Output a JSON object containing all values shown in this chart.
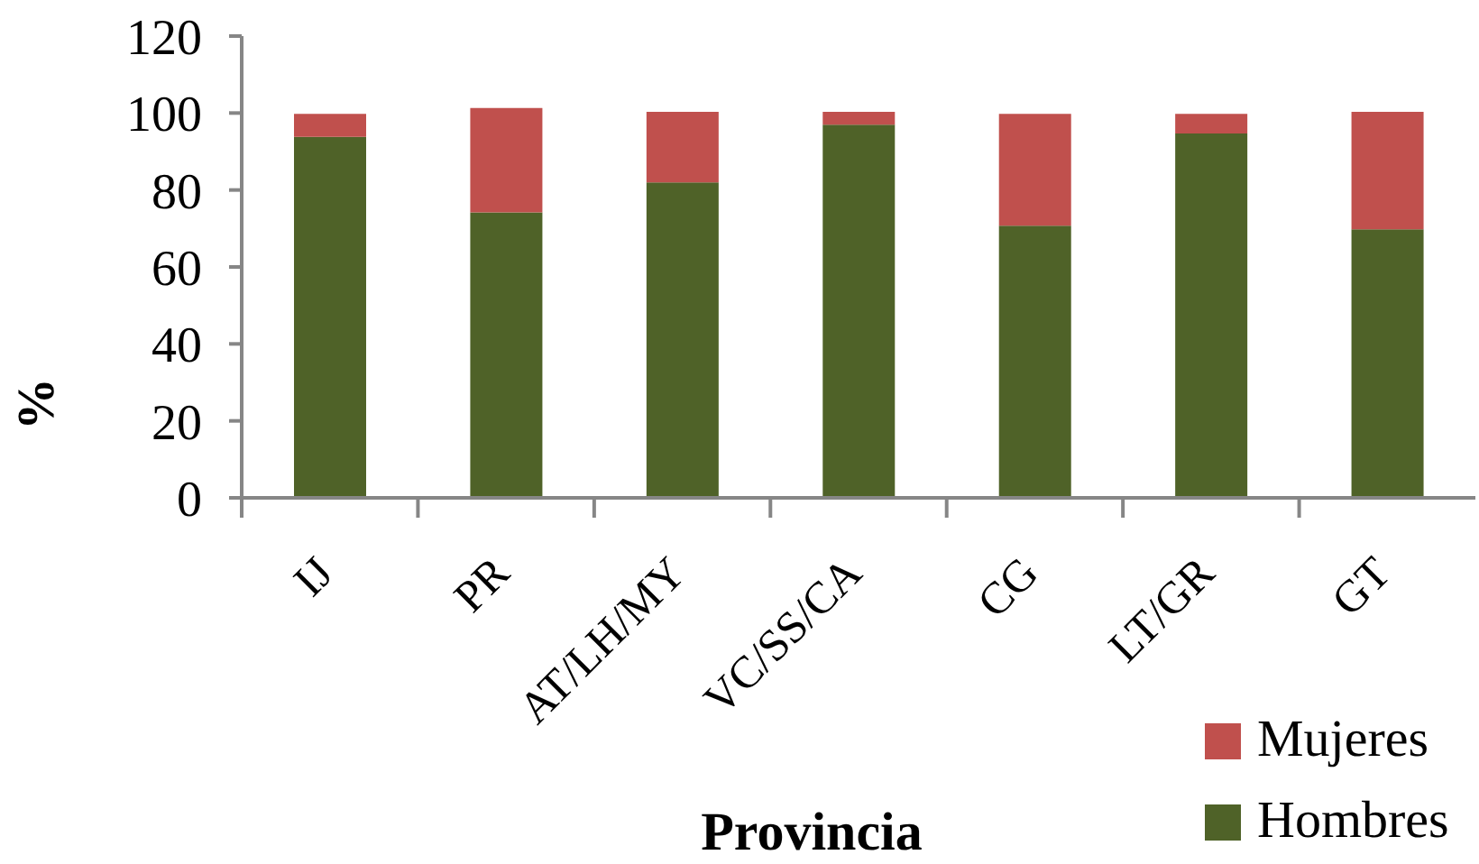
{
  "chart_data": {
    "type": "bar",
    "stacked": true,
    "xlabel": "Provincia",
    "ylabel": "%",
    "categories": [
      "IJ",
      "PR",
      "AT/LH/MY",
      "VC/SS/CA",
      "CG",
      "LT/GR",
      "GT"
    ],
    "series": [
      {
        "name": "Hombres",
        "color": "#4f6228",
        "values": [
          93.8,
          74.2,
          82.0,
          97.0,
          70.7,
          94.7,
          69.8
        ]
      },
      {
        "name": "Mujeres",
        "color": "#c0504d",
        "values": [
          6.0,
          27.1,
          18.3,
          3.3,
          29.1,
          5.1,
          30.5
        ]
      }
    ],
    "ylim": [
      0,
      120
    ],
    "yticks": [
      0,
      20,
      40,
      60,
      80,
      100,
      120
    ],
    "legend": "bottom right"
  }
}
